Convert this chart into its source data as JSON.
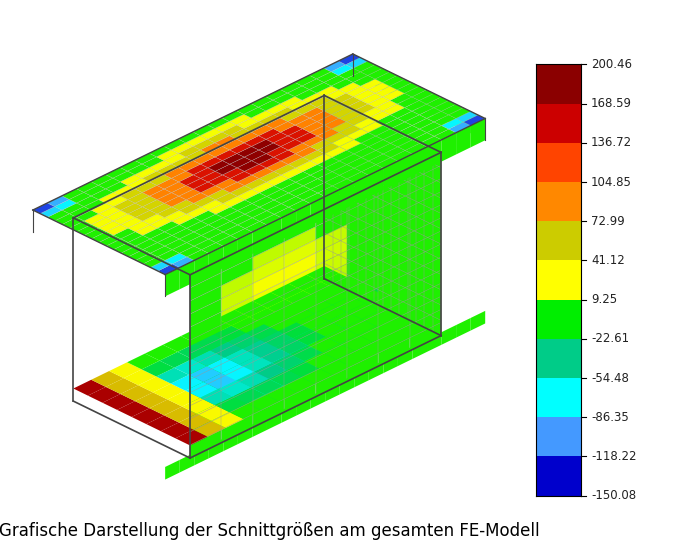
{
  "title": "Grafische Darstellung der Schnittgrößen am gesamten FE-Modell",
  "title_fontsize": 12,
  "colorbar_values": [
    200.46,
    168.59,
    136.72,
    104.85,
    72.99,
    41.12,
    9.25,
    -22.61,
    -54.48,
    -86.35,
    -118.22,
    -150.08
  ],
  "colorbar_colors": [
    "#8b0000",
    "#cc0000",
    "#ff4400",
    "#ff8800",
    "#cccc00",
    "#ffff00",
    "#00ee00",
    "#00cc88",
    "#00ffff",
    "#4499ff",
    "#0000cc",
    "#000088"
  ],
  "vmin": -150.08,
  "vmax": 200.46,
  "fig_bg": "#ffffff"
}
